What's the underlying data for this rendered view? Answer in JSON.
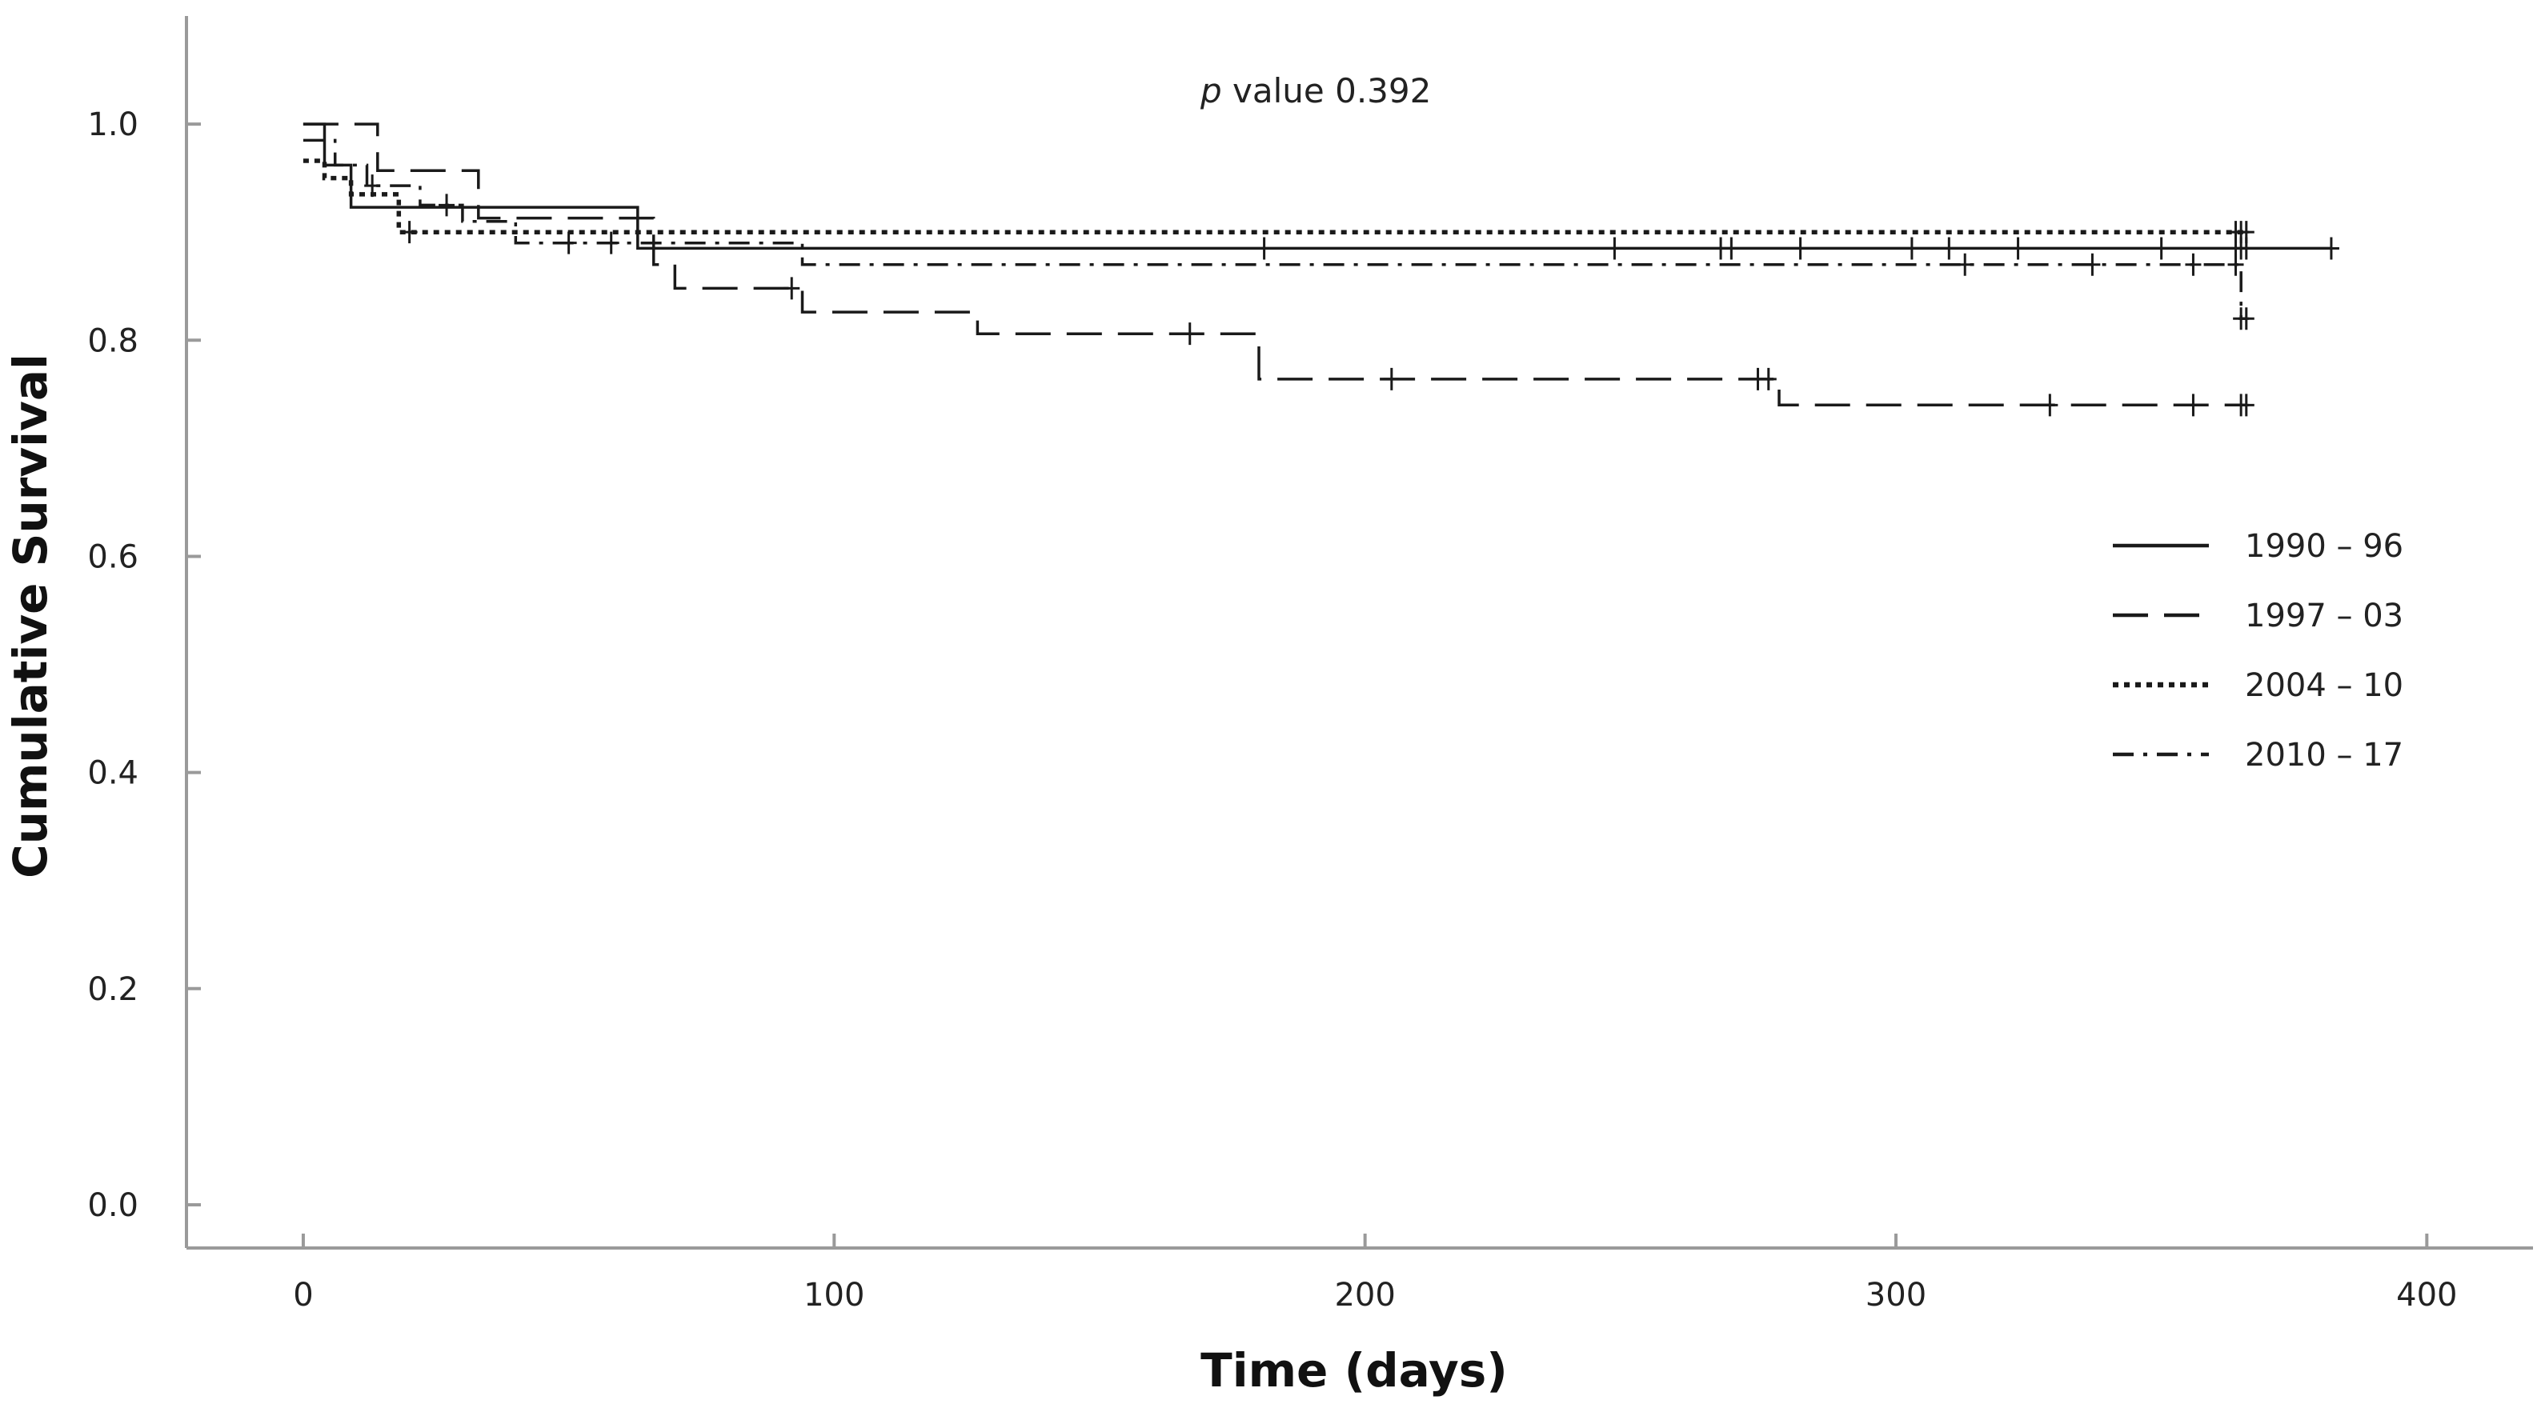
{
  "chart_data": {
    "type": "line",
    "title": "",
    "xlabel": "Time (days)",
    "ylabel": "Cumulative Survival",
    "xlim": [
      -22,
      420
    ],
    "ylim": [
      -0.04,
      1.1
    ],
    "x_ticks": [
      0,
      100,
      200,
      300,
      400
    ],
    "x_tick_labels": [
      "0",
      "100",
      "200",
      "300",
      "400"
    ],
    "y_ticks": [
      0.0,
      0.2,
      0.4,
      0.6,
      0.8,
      1.0
    ],
    "y_tick_labels": [
      "0.0",
      "0.2",
      "0.4",
      "0.6",
      "0.8",
      "1.0"
    ],
    "grid": false,
    "legend_position": "right",
    "annotation": {
      "italic": "p",
      "text": " value 0.392"
    },
    "series": [
      {
        "name": "1990 – 96",
        "style": "solid",
        "steps": [
          [
            0,
            1.0
          ],
          [
            4,
            0.962
          ],
          [
            9,
            0.923
          ],
          [
            63,
            0.885
          ],
          [
            382,
            0.885
          ]
        ],
        "censored": [
          [
            181,
            0.885
          ],
          [
            247,
            0.885
          ],
          [
            267,
            0.885
          ],
          [
            269,
            0.885
          ],
          [
            282,
            0.885
          ],
          [
            303,
            0.885
          ],
          [
            310,
            0.885
          ],
          [
            323,
            0.885
          ],
          [
            350,
            0.885
          ],
          [
            364,
            0.885
          ],
          [
            365,
            0.885
          ],
          [
            366,
            0.885
          ],
          [
            382,
            0.885
          ]
        ]
      },
      {
        "name": "1997 – 03",
        "style": "dashed",
        "steps": [
          [
            0,
            1.0
          ],
          [
            14,
            0.957
          ],
          [
            33,
            0.913
          ],
          [
            66,
            0.87
          ],
          [
            70,
            0.848
          ],
          [
            94,
            0.826
          ],
          [
            127,
            0.806
          ],
          [
            180,
            0.764
          ],
          [
            278,
            0.74
          ],
          [
            366,
            0.74
          ]
        ],
        "censored": [
          [
            92,
            0.848
          ],
          [
            167,
            0.806
          ],
          [
            205,
            0.764
          ],
          [
            274,
            0.764
          ],
          [
            276,
            0.764
          ],
          [
            329,
            0.74
          ],
          [
            356,
            0.74
          ],
          [
            365,
            0.74
          ],
          [
            366,
            0.74
          ]
        ]
      },
      {
        "name": "2004 – 10",
        "style": "dotted",
        "steps": [
          [
            0,
            0.966
          ],
          [
            4,
            0.95
          ],
          [
            9,
            0.935
          ],
          [
            18,
            0.9
          ],
          [
            366,
            0.9
          ]
        ],
        "censored": [
          [
            20,
            0.9
          ],
          [
            364,
            0.9
          ],
          [
            365,
            0.9
          ],
          [
            366,
            0.9
          ]
        ]
      },
      {
        "name": "2010 – 17",
        "style": "dashdot",
        "steps": [
          [
            0,
            0.985
          ],
          [
            6,
            0.962
          ],
          [
            12,
            0.943
          ],
          [
            22,
            0.925
          ],
          [
            30,
            0.91
          ],
          [
            40,
            0.89
          ],
          [
            94,
            0.87
          ],
          [
            365,
            0.87
          ],
          [
            365,
            0.82
          ],
          [
            366,
            0.82
          ]
        ],
        "censored": [
          [
            13,
            0.943
          ],
          [
            27,
            0.925
          ],
          [
            50,
            0.89
          ],
          [
            58,
            0.89
          ],
          [
            313,
            0.87
          ],
          [
            337,
            0.87
          ],
          [
            356,
            0.87
          ],
          [
            364,
            0.87
          ],
          [
            365,
            0.82
          ],
          [
            366,
            0.82
          ]
        ]
      }
    ]
  }
}
